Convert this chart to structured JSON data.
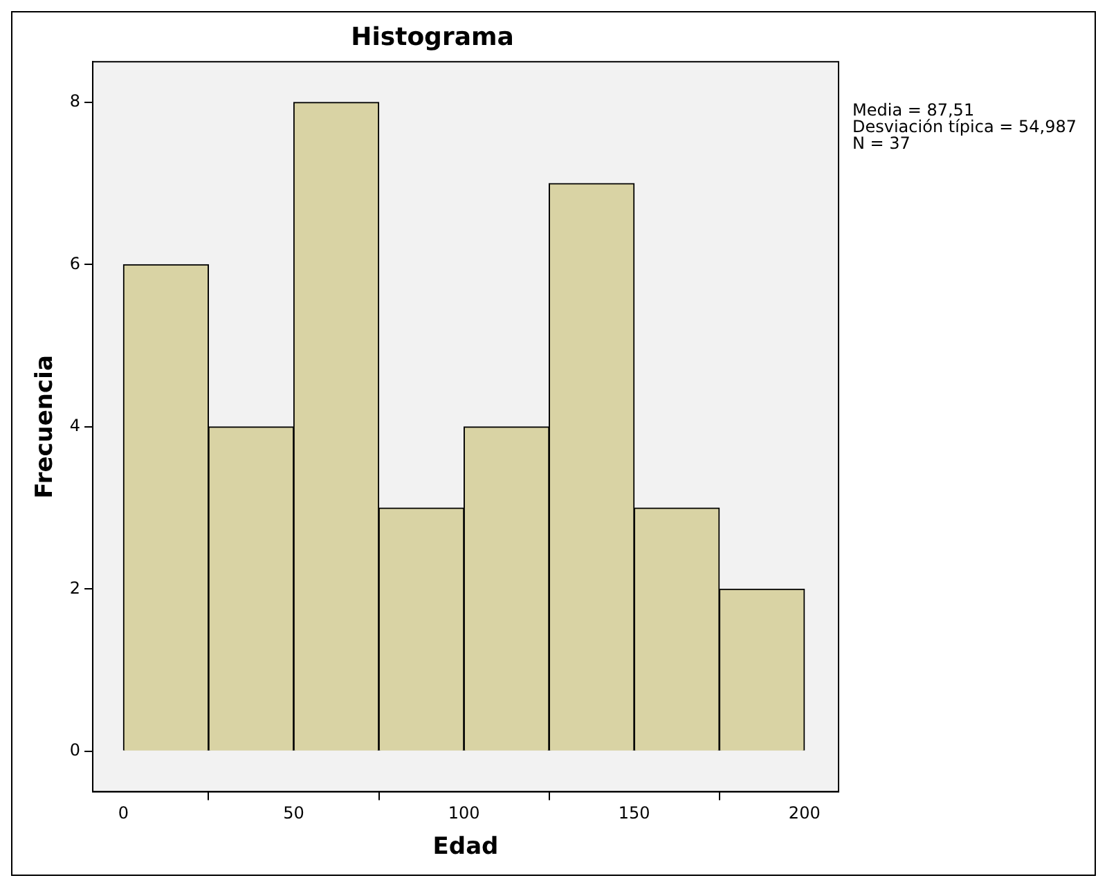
{
  "chart_data": {
    "type": "histogram",
    "title": "Histograma",
    "xlabel": "Edad",
    "ylabel": "Frecuencia",
    "bins": [
      0,
      25,
      50,
      75,
      100,
      125,
      150,
      175,
      200
    ],
    "values": [
      6,
      4,
      8,
      3,
      4,
      7,
      3,
      2
    ],
    "color": "#d9d3a4",
    "xlim": [
      -9,
      210
    ],
    "xticks": [
      0,
      50,
      100,
      150,
      200
    ],
    "ylim": [
      -0.5,
      8.5
    ],
    "yticks": [
      0,
      2,
      4,
      6,
      8
    ],
    "grid": false,
    "legend": false,
    "annotations": [
      "Media = 87,51",
      "Desviación típica = 54,987",
      "N = 37"
    ]
  }
}
